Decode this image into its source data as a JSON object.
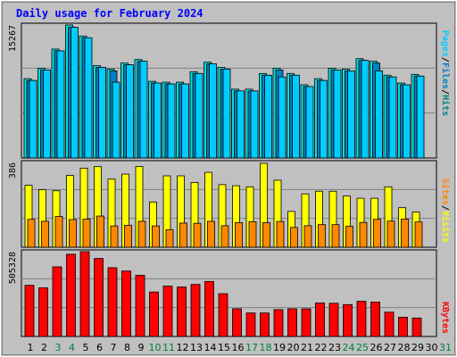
{
  "title": "Daily usage for February 2024",
  "colors": {
    "pages": "#00ccff",
    "files": "#00ccff",
    "hits": "#00ccff",
    "visits": "#ffff00",
    "sites": "#ff8800",
    "kbytes": "#ff0000",
    "weekend_day": "#008040",
    "weekday": "#000000",
    "plot_bg": "#c0c0c0",
    "panel_border": "#000000",
    "gridline": "#808080"
  },
  "right_labels": {
    "top": [
      "Pages",
      "Files",
      "Hits"
    ],
    "top_sep": "/",
    "middle": [
      "Sites",
      "Visits"
    ],
    "middle_sep": "/",
    "bottom": "KBytes"
  },
  "chart_data": [
    {
      "type": "bar",
      "panel": "top",
      "y_max_label": "15267",
      "ylim": [
        0,
        15267
      ],
      "categories": [
        1,
        2,
        3,
        4,
        5,
        6,
        7,
        8,
        9,
        10,
        11,
        12,
        13,
        14,
        15,
        16,
        17,
        18,
        19,
        20,
        21,
        22,
        23,
        24,
        25,
        26,
        27,
        28,
        29
      ],
      "series": [
        {
          "name": "Hits",
          "values": [
            9100,
            10300,
            12500,
            15267,
            14000,
            10600,
            10200,
            10900,
            11300,
            8800,
            8700,
            8700,
            9900,
            11000,
            10400,
            7900,
            7900,
            9700,
            10300,
            9700,
            8400,
            9100,
            10300,
            10200,
            11400,
            11100,
            9500,
            8600,
            9600
          ]
        },
        {
          "name": "Files",
          "values": [
            8900,
            10100,
            12300,
            15000,
            13800,
            10400,
            10000,
            10700,
            11100,
            8600,
            8500,
            8500,
            9700,
            10800,
            10200,
            7700,
            7700,
            9500,
            10100,
            9500,
            8200,
            8900,
            10100,
            10000,
            11200,
            10900,
            9300,
            8400,
            9400
          ]
        },
        {
          "name": "Pages",
          "values": [
            8900,
            10100,
            12300,
            15000,
            13800,
            10400,
            8700,
            10700,
            11100,
            8600,
            8500,
            8500,
            9700,
            10800,
            10200,
            7700,
            7700,
            9500,
            9300,
            9500,
            8200,
            8900,
            10100,
            10000,
            11200,
            10000,
            9300,
            8400,
            9400
          ]
        }
      ]
    },
    {
      "type": "bar",
      "panel": "middle",
      "y_max_label": "386",
      "ylim": [
        0,
        386
      ],
      "categories": [
        1,
        2,
        3,
        4,
        5,
        6,
        7,
        8,
        9,
        10,
        11,
        12,
        13,
        14,
        15,
        16,
        17,
        18,
        19,
        20,
        21,
        22,
        23,
        24,
        25,
        26,
        27,
        28,
        29
      ],
      "series": [
        {
          "name": "Visits",
          "values": [
            282,
            262,
            257,
            327,
            360,
            367,
            310,
            333,
            368,
            206,
            325,
            325,
            295,
            341,
            285,
            280,
            275,
            382,
            305,
            163,
            243,
            255,
            255,
            233,
            223,
            223,
            275,
            180,
            160
          ]
        },
        {
          "name": "Sites",
          "values": [
            127,
            118,
            140,
            126,
            128,
            142,
            97,
            100,
            118,
            97,
            80,
            110,
            109,
            118,
            98,
            112,
            116,
            112,
            117,
            90,
            98,
            103,
            103,
            95,
            113,
            127,
            119,
            128,
            115
          ]
        }
      ]
    },
    {
      "type": "bar",
      "panel": "bottom",
      "y_max_label": "505328",
      "ylim": [
        0,
        505328
      ],
      "categories": [
        1,
        2,
        3,
        4,
        5,
        6,
        7,
        8,
        9,
        10,
        11,
        12,
        13,
        14,
        15,
        16,
        17,
        18,
        19,
        20,
        21,
        22,
        23,
        24,
        25,
        26,
        27,
        28,
        29
      ],
      "series": [
        {
          "name": "KBytes",
          "values": [
            305000,
            290000,
            415000,
            490000,
            505328,
            465000,
            410000,
            390000,
            365000,
            265000,
            300000,
            295000,
            310000,
            328000,
            255000,
            165000,
            140000,
            140000,
            160000,
            165000,
            165000,
            200000,
            198000,
            190000,
            210000,
            205000,
            145000,
            115000,
            110000
          ]
        }
      ]
    }
  ],
  "x_labels": [
    {
      "label": "1",
      "weekend": false
    },
    {
      "label": "2",
      "weekend": false
    },
    {
      "label": "3",
      "weekend": true
    },
    {
      "label": "4",
      "weekend": true
    },
    {
      "label": "5",
      "weekend": false
    },
    {
      "label": "6",
      "weekend": false
    },
    {
      "label": "7",
      "weekend": false
    },
    {
      "label": "8",
      "weekend": false
    },
    {
      "label": "9",
      "weekend": false
    },
    {
      "label": "10",
      "weekend": true
    },
    {
      "label": "11",
      "weekend": true
    },
    {
      "label": "12",
      "weekend": false
    },
    {
      "label": "13",
      "weekend": false
    },
    {
      "label": "14",
      "weekend": false
    },
    {
      "label": "15",
      "weekend": false
    },
    {
      "label": "16",
      "weekend": false
    },
    {
      "label": "17",
      "weekend": true
    },
    {
      "label": "18",
      "weekend": true
    },
    {
      "label": "19",
      "weekend": false
    },
    {
      "label": "20",
      "weekend": false
    },
    {
      "label": "21",
      "weekend": false
    },
    {
      "label": "22",
      "weekend": false
    },
    {
      "label": "23",
      "weekend": false
    },
    {
      "label": "24",
      "weekend": true
    },
    {
      "label": "25",
      "weekend": true
    },
    {
      "label": "26",
      "weekend": false
    },
    {
      "label": "27",
      "weekend": false
    },
    {
      "label": "28",
      "weekend": false
    },
    {
      "label": "29",
      "weekend": false
    },
    {
      "label": "30",
      "weekend": false
    },
    {
      "label": "31",
      "weekend": true
    }
  ]
}
